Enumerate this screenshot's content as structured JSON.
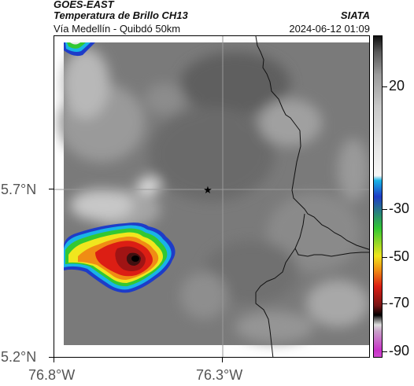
{
  "header": {
    "satellite": "GOES-EAST",
    "product": "Temperatura de Brillo CH13",
    "org": "SIATA",
    "location": "Vía Medellín - Quibdó 50km",
    "datetime": "2024-06-12 01:09"
  },
  "axes": {
    "lat_top": "5.7°N",
    "lat_bottom": "5.2°N",
    "lon_left": "76.8°W",
    "lon_right": "76.3°W"
  },
  "colorbar": {
    "labels": [
      "20",
      "-30",
      "-50",
      "-70",
      "-90"
    ],
    "colors": {
      "warm_gray_light": "#c8c8c8",
      "warm_gray_dark": "#505050",
      "cyan": "#19b4e6",
      "blue": "#1e3cc8",
      "green": "#32c832",
      "yellow": "#f0e61e",
      "orange": "#f08c14",
      "red": "#dc1e14",
      "dark_red": "#781414",
      "black": "#000000",
      "magenta": "#c832c8"
    }
  },
  "marker": {
    "icon": "star-icon"
  }
}
